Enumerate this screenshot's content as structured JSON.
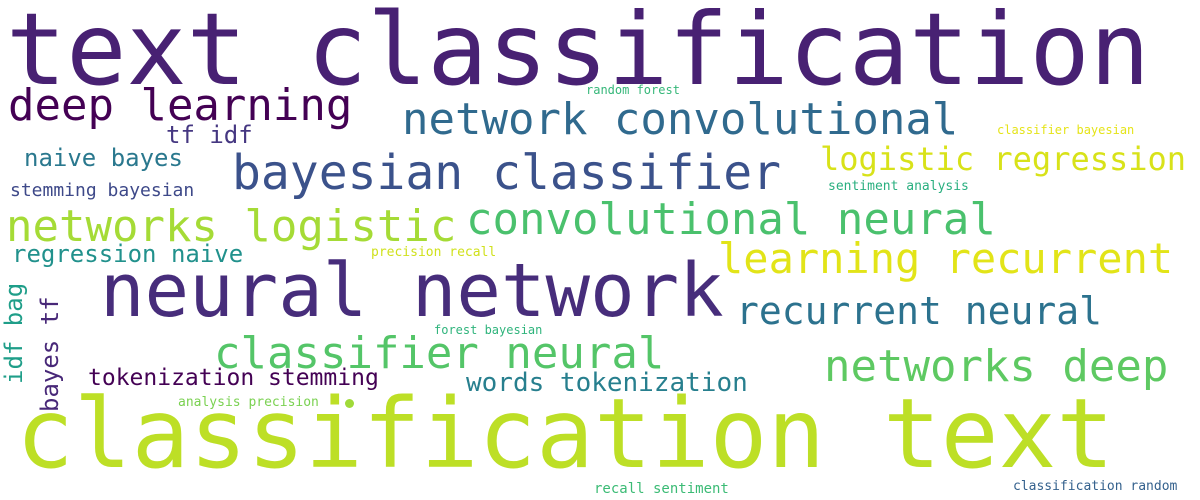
{
  "words": {
    "text_classification": {
      "text": "text classification",
      "color": "#482173"
    },
    "classification_text": {
      "text": "classification text",
      "color": "#bddf26"
    },
    "neural_network": {
      "text": "neural network",
      "color": "#472d7b"
    },
    "deep_learning": {
      "text": "deep learning",
      "color": "#440154"
    },
    "network_convolutional": {
      "text": "network convolutional",
      "color": "#306a8e"
    },
    "bayesian_classifier": {
      "text": "bayesian classifier",
      "color": "#3b528b"
    },
    "convolutional_neural": {
      "text": "convolutional neural",
      "color": "#4ac16d"
    },
    "networks_logistic": {
      "text": "networks logistic",
      "color": "#a5db36"
    },
    "learning_recurrent": {
      "text": "learning recurrent",
      "color": "#e2e418"
    },
    "logistic_regression": {
      "text": "logistic regression",
      "color": "#d8e219"
    },
    "recurrent_neural": {
      "text": "recurrent neural",
      "color": "#2c728e"
    },
    "classifier_neural": {
      "text": "classifier neural",
      "color": "#54c568"
    },
    "networks_deep": {
      "text": "networks deep",
      "color": "#5ec962"
    },
    "words_tokenization": {
      "text": "words tokenization",
      "color": "#277f8e"
    },
    "tokenization_stemming": {
      "text": "tokenization stemming",
      "color": "#440154"
    },
    "tf_idf": {
      "text": "tf idf",
      "color": "#453781"
    },
    "naive_bayes": {
      "text": "naive bayes",
      "color": "#2a788e"
    },
    "stemming_bayesian": {
      "text": "stemming bayesian",
      "color": "#3e4989"
    },
    "regression_naive": {
      "text": "regression naive",
      "color": "#21918c"
    },
    "idf_bag": {
      "text": "idf bag",
      "color": "#1f9e89"
    },
    "bayes_tf": {
      "text": "bayes tf",
      "color": "#482878"
    },
    "random_forest": {
      "text": "random forest",
      "color": "#35b779"
    },
    "classifier_bayesian": {
      "text": "classifier bayesian",
      "color": "#e5e419"
    },
    "sentiment_analysis": {
      "text": "sentiment analysis",
      "color": "#29af7f"
    },
    "precision_recall": {
      "text": "precision recall",
      "color": "#d0e11c"
    },
    "forest_bayesian": {
      "text": "forest bayesian",
      "color": "#2fb47c"
    },
    "analysis_precision": {
      "text": "analysis precision",
      "color": "#7ad151"
    },
    "recall_sentiment": {
      "text": "recall sentiment",
      "color": "#3bbb75"
    },
    "classification_random": {
      "text": "classification random",
      "color": "#34618d"
    }
  }
}
